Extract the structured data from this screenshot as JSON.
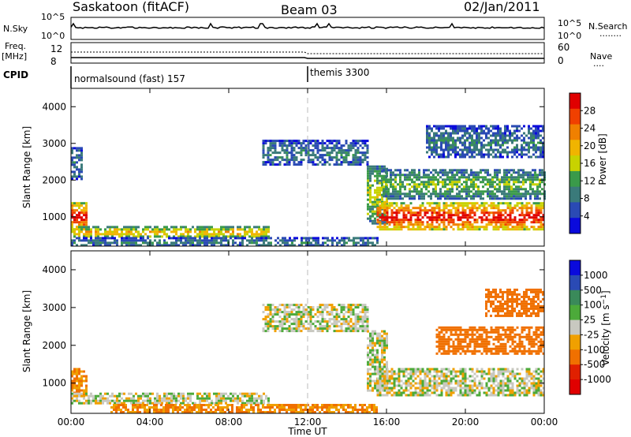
{
  "header": {
    "station": "Saskatoon (fitACF)",
    "beam": "Beam 03",
    "date": "02/Jan/2011"
  },
  "noise_panel": {
    "left_label": "N.Sky",
    "left_ticks": [
      "10^5",
      "10^0"
    ],
    "right_ticks": [
      "10^5",
      "10^0"
    ],
    "right_label": "N.Search",
    "right_legend_marker": "........"
  },
  "freq_panel": {
    "left_label_1": "Freq.",
    "left_label_2": "[MHz]",
    "left_ticks": [
      "12",
      "8"
    ],
    "right_ticks": [
      "60",
      "0"
    ],
    "right_label": "Nave",
    "right_legend_marker": "...."
  },
  "cpid_panel": {
    "label": "CPID",
    "segment_1": "normalsound (fast) 157",
    "segment_2": "themis 3300"
  },
  "time_axis": {
    "label": "Time UT",
    "ticks": [
      "00:00",
      "04:00",
      "08:00",
      "12:00",
      "16:00",
      "20:00",
      "00:00"
    ]
  },
  "colors": {
    "power_scale": [
      "#0a0adc",
      "#2a4ab4",
      "#3a7a7a",
      "#3a9a4a",
      "#c8d200",
      "#f0b400",
      "#f08000",
      "#f04000",
      "#e00000"
    ],
    "velocity_scale": [
      "#0a0adc",
      "#2a4ab4",
      "#3a8a5a",
      "#4caa3a",
      "#c8c8c0",
      "#f0a000",
      "#f07000",
      "#e02000",
      "#e00000"
    ],
    "ground_scatter": "#b8b8b0"
  },
  "chart_data": [
    {
      "type": "heatmap",
      "title": "",
      "xlabel": "Time UT",
      "ylabel": "Slant Range [km]",
      "ylim": [
        200,
        4500
      ],
      "x_ticks": [
        "00:00",
        "04:00",
        "08:00",
        "12:00",
        "16:00",
        "20:00",
        "00:00"
      ],
      "y_ticks": [
        1000,
        2000,
        3000,
        4000
      ],
      "colorbar": {
        "label": "Power [dB]",
        "ticks": [
          28,
          24,
          20,
          16,
          12,
          8,
          4
        ]
      },
      "regions": [
        {
          "t_start": 0.0,
          "t_end": 0.8,
          "range_low": 650,
          "range_high": 1400,
          "value_db": 26
        },
        {
          "t_start": 0.0,
          "t_end": 10.0,
          "range_low": 450,
          "range_high": 750,
          "value_db": 18
        },
        {
          "t_start": 0.0,
          "t_end": 15.5,
          "range_low": 200,
          "range_high": 450,
          "value_db": 8
        },
        {
          "t_start": 0.0,
          "t_end": 0.6,
          "range_low": 2000,
          "range_high": 2900,
          "value_db": 8
        },
        {
          "t_start": 9.7,
          "t_end": 15.0,
          "range_low": 2400,
          "range_high": 3100,
          "value_db": 8
        },
        {
          "t_start": 15.0,
          "t_end": 16.0,
          "range_low": 800,
          "range_high": 2400,
          "value_db": 14
        },
        {
          "t_start": 15.5,
          "t_end": 24.0,
          "range_low": 650,
          "range_high": 1400,
          "value_db": 26
        },
        {
          "t_start": 15.8,
          "t_end": 24.0,
          "range_low": 1500,
          "range_high": 2300,
          "value_db": 12
        },
        {
          "t_start": 18.0,
          "t_end": 24.0,
          "range_low": 2600,
          "range_high": 3500,
          "value_db": 8
        }
      ]
    },
    {
      "type": "heatmap",
      "title": "",
      "xlabel": "Time UT",
      "ylabel": "Slant Range [km]",
      "ylim": [
        200,
        4500
      ],
      "x_ticks": [
        "00:00",
        "04:00",
        "08:00",
        "12:00",
        "16:00",
        "20:00",
        "00:00"
      ],
      "y_ticks": [
        1000,
        2000,
        3000,
        4000
      ],
      "colorbar": {
        "label": "Velocity [m s^-1]",
        "ticks": [
          1000,
          500,
          100,
          25,
          -25,
          -100,
          -500,
          -1000
        ]
      },
      "regions": [
        {
          "t_start": 0.0,
          "t_end": 0.8,
          "range_low": 650,
          "range_high": 1400,
          "value_ms": -100
        },
        {
          "t_start": 0.0,
          "t_end": 10.0,
          "range_low": 450,
          "range_high": 750,
          "value_ms": 0
        },
        {
          "t_start": 2.0,
          "t_end": 15.5,
          "range_low": 200,
          "range_high": 450,
          "value_ms": -100
        },
        {
          "t_start": 9.7,
          "t_end": 15.0,
          "range_low": 2400,
          "range_high": 3100,
          "value_ms": 0
        },
        {
          "t_start": 15.0,
          "t_end": 16.0,
          "range_low": 800,
          "range_high": 2400,
          "value_ms": 0
        },
        {
          "t_start": 15.5,
          "t_end": 24.0,
          "range_low": 650,
          "range_high": 1400,
          "value_ms": 0
        },
        {
          "t_start": 18.5,
          "t_end": 24.0,
          "range_low": 1800,
          "range_high": 2500,
          "value_ms": -200
        },
        {
          "t_start": 21.0,
          "t_end": 24.0,
          "range_low": 2800,
          "range_high": 3500,
          "value_ms": -200
        }
      ]
    }
  ]
}
